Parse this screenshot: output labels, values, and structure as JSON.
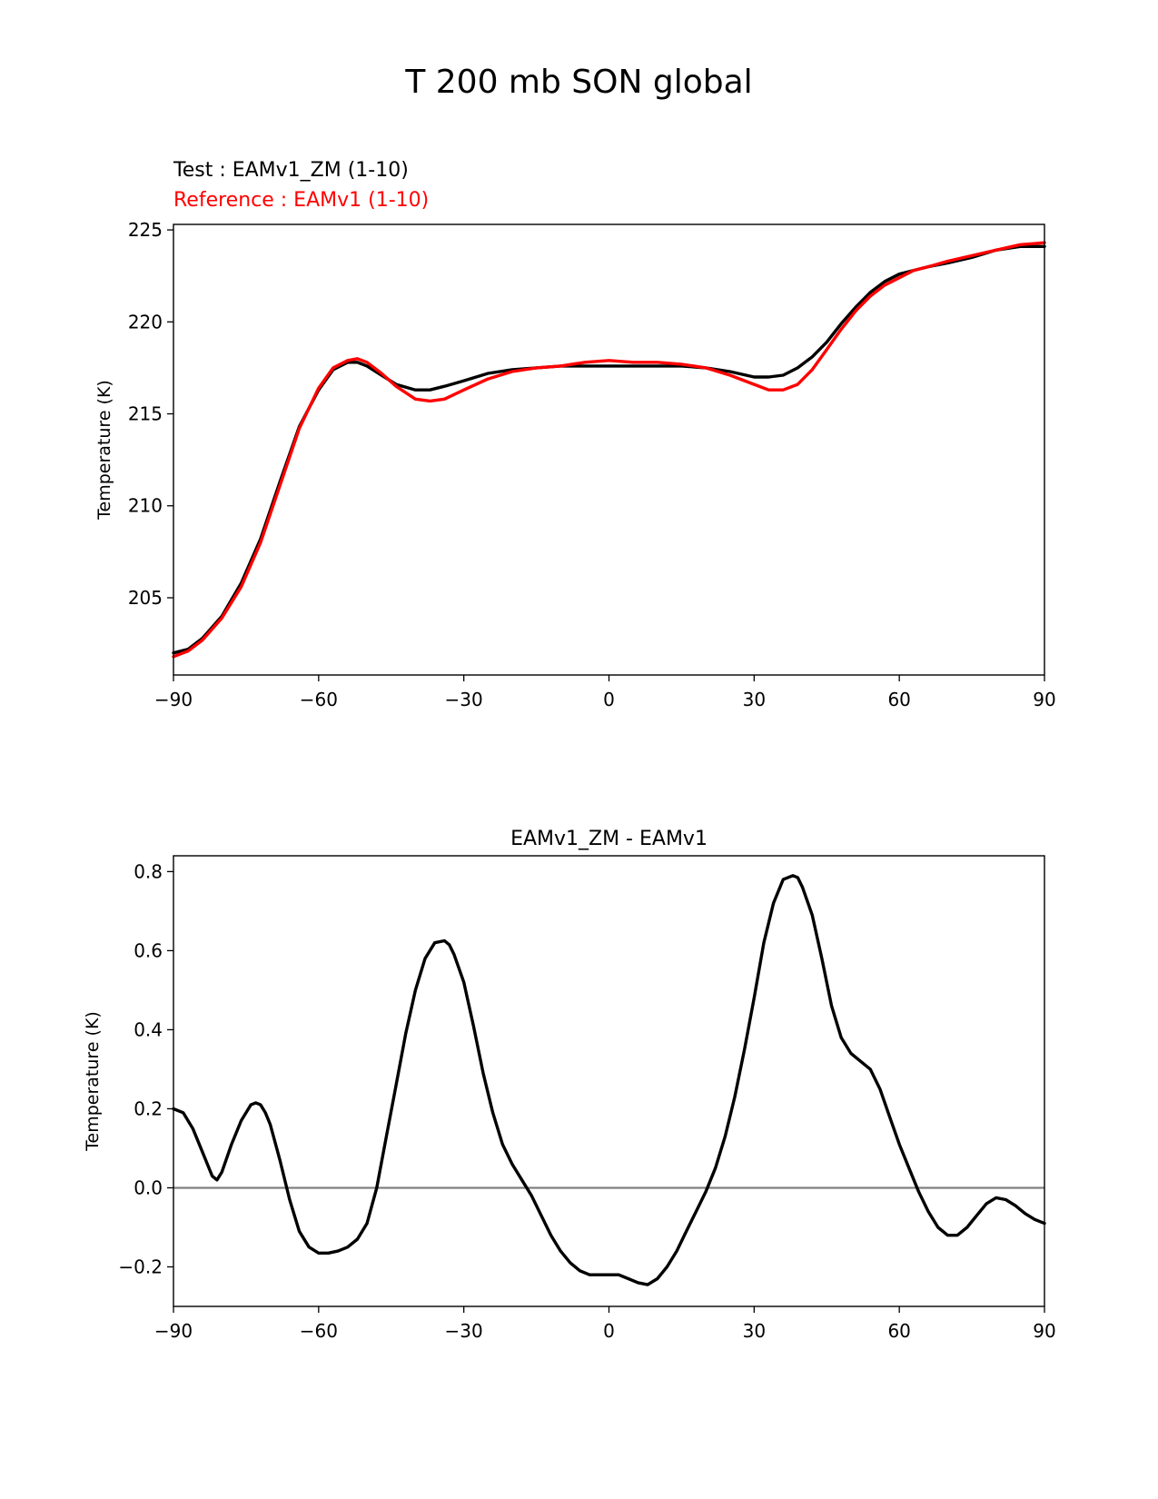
{
  "title": "T 200 mb SON global",
  "chart_data": [
    {
      "type": "line",
      "test_label": "Test : EAMv1_ZM (1-10)",
      "reference_label": "Reference : EAMv1 (1-10)",
      "ylabel": "Temperature (K)",
      "xlabel": "",
      "xlim": [
        -90,
        90
      ],
      "ylim": [
        200.8,
        225.3
      ],
      "xticks": [
        -90,
        -60,
        -30,
        0,
        30,
        60,
        90
      ],
      "xtick_labels": [
        "−90",
        "−60",
        "−30",
        "0",
        "30",
        "60",
        "90"
      ],
      "yticks": [
        205,
        210,
        215,
        220,
        225
      ],
      "ytick_labels": [
        "205",
        "210",
        "215",
        "220",
        "225"
      ],
      "grid": false,
      "series": [
        {
          "name": "Test : EAMv1_ZM (1-10)",
          "color": "#000000",
          "x": [
            -90,
            -87,
            -84,
            -80,
            -76,
            -72,
            -68,
            -64,
            -60,
            -57,
            -54,
            -52,
            -50,
            -47,
            -44,
            -40,
            -37,
            -34,
            -30,
            -25,
            -20,
            -15,
            -10,
            -5,
            0,
            5,
            10,
            15,
            20,
            25,
            30,
            33,
            36,
            39,
            42,
            45,
            48,
            51,
            54,
            57,
            60,
            63,
            66,
            70,
            75,
            80,
            85,
            90
          ],
          "y": [
            202.0,
            202.2,
            202.8,
            204.0,
            205.8,
            208.2,
            211.3,
            214.3,
            216.3,
            217.4,
            217.8,
            217.8,
            217.6,
            217.1,
            216.6,
            216.3,
            216.3,
            216.5,
            216.8,
            217.2,
            217.4,
            217.5,
            217.6,
            217.6,
            217.6,
            217.6,
            217.6,
            217.6,
            217.5,
            217.3,
            217.0,
            217.0,
            217.1,
            217.5,
            218.1,
            218.9,
            219.9,
            220.8,
            221.6,
            222.2,
            222.6,
            222.8,
            223.0,
            223.2,
            223.5,
            223.9,
            224.1,
            224.1
          ]
        },
        {
          "name": "Reference : EAMv1 (1-10)",
          "color": "#ff0000",
          "x": [
            -90,
            -87,
            -84,
            -80,
            -76,
            -72,
            -68,
            -64,
            -60,
            -57,
            -54,
            -52,
            -50,
            -47,
            -44,
            -40,
            -37,
            -34,
            -30,
            -25,
            -20,
            -15,
            -10,
            -5,
            0,
            5,
            10,
            15,
            20,
            25,
            30,
            33,
            36,
            39,
            42,
            45,
            48,
            51,
            54,
            57,
            60,
            63,
            66,
            70,
            75,
            80,
            85,
            90
          ],
          "y": [
            201.8,
            202.1,
            202.7,
            203.9,
            205.6,
            208.0,
            211.1,
            214.2,
            216.4,
            217.5,
            217.9,
            218.0,
            217.8,
            217.2,
            216.5,
            215.8,
            215.7,
            215.8,
            216.3,
            216.9,
            217.3,
            217.5,
            217.6,
            217.8,
            217.9,
            217.8,
            217.8,
            217.7,
            217.5,
            217.1,
            216.6,
            216.3,
            216.3,
            216.6,
            217.4,
            218.5,
            219.6,
            220.6,
            221.4,
            222.0,
            222.4,
            222.8,
            223.0,
            223.3,
            223.6,
            223.9,
            224.2,
            224.3
          ]
        }
      ]
    },
    {
      "type": "line",
      "title": "EAMv1_ZM - EAMv1",
      "ylabel": "Temperature (K)",
      "xlabel": "",
      "xlim": [
        -90,
        90
      ],
      "ylim": [
        -0.3,
        0.84
      ],
      "xticks": [
        -90,
        -60,
        -30,
        0,
        30,
        60,
        90
      ],
      "xtick_labels": [
        "−90",
        "−60",
        "−30",
        "0",
        "30",
        "60",
        "90"
      ],
      "yticks": [
        -0.2,
        0.0,
        0.2,
        0.4,
        0.6,
        0.8
      ],
      "ytick_labels": [
        "−0.2",
        "0.0",
        "0.2",
        "0.4",
        "0.6",
        "0.8"
      ],
      "zero_line_color": "#808080",
      "grid": false,
      "series": [
        {
          "color": "#000000",
          "x": [
            -90,
            -88,
            -86,
            -84,
            -82,
            -81,
            -80,
            -78,
            -76,
            -74,
            -73,
            -72,
            -71,
            -70,
            -68,
            -66,
            -64,
            -62,
            -60,
            -58,
            -56,
            -54,
            -52,
            -50,
            -48,
            -46,
            -44,
            -42,
            -40,
            -38,
            -36,
            -34,
            -33,
            -32,
            -30,
            -28,
            -26,
            -24,
            -22,
            -20,
            -18,
            -16,
            -14,
            -12,
            -10,
            -8,
            -6,
            -4,
            -2,
            0,
            2,
            4,
            6,
            8,
            10,
            12,
            14,
            16,
            18,
            20,
            22,
            24,
            26,
            28,
            30,
            32,
            34,
            36,
            38,
            39,
            40,
            42,
            44,
            46,
            48,
            50,
            52,
            54,
            56,
            58,
            60,
            62,
            64,
            66,
            68,
            70,
            72,
            74,
            76,
            78,
            80,
            82,
            84,
            86,
            88,
            90
          ],
          "y": [
            0.2,
            0.19,
            0.15,
            0.09,
            0.03,
            0.02,
            0.04,
            0.11,
            0.17,
            0.21,
            0.215,
            0.21,
            0.19,
            0.16,
            0.07,
            -0.03,
            -0.11,
            -0.15,
            -0.165,
            -0.165,
            -0.16,
            -0.15,
            -0.13,
            -0.09,
            0.0,
            0.13,
            0.26,
            0.39,
            0.5,
            0.58,
            0.62,
            0.625,
            0.615,
            0.59,
            0.52,
            0.41,
            0.29,
            0.19,
            0.11,
            0.06,
            0.02,
            -0.02,
            -0.07,
            -0.12,
            -0.16,
            -0.19,
            -0.21,
            -0.22,
            -0.22,
            -0.22,
            -0.22,
            -0.23,
            -0.24,
            -0.245,
            -0.23,
            -0.2,
            -0.16,
            -0.11,
            -0.06,
            -0.01,
            0.05,
            0.13,
            0.23,
            0.35,
            0.48,
            0.62,
            0.72,
            0.78,
            0.79,
            0.785,
            0.76,
            0.69,
            0.58,
            0.46,
            0.38,
            0.34,
            0.32,
            0.3,
            0.25,
            0.18,
            0.11,
            0.05,
            -0.01,
            -0.06,
            -0.1,
            -0.12,
            -0.12,
            -0.1,
            -0.07,
            -0.04,
            -0.025,
            -0.03,
            -0.045,
            -0.065,
            -0.08,
            -0.09
          ]
        }
      ]
    }
  ]
}
